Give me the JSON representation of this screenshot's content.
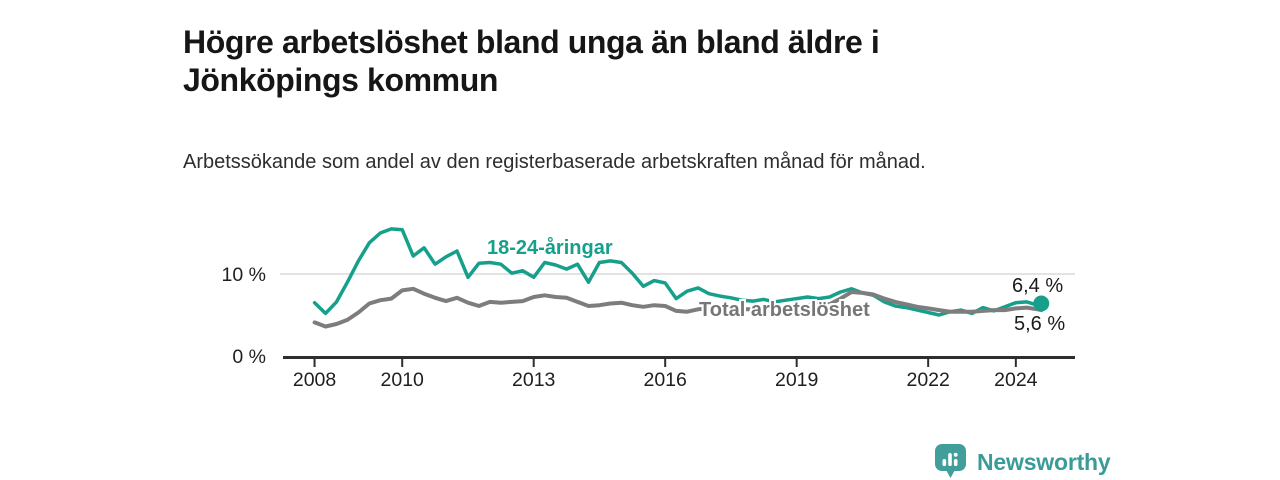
{
  "header": {
    "title": "Högre arbetslöshet bland unga än bland äldre i Jönköpings kommun",
    "subtitle": "Arbetssökande som andel av den registerbaserade arbetskraften månad för månad."
  },
  "chart_data": {
    "type": "line",
    "title": "Högre arbetslöshet bland unga än bland äldre i Jönköpings kommun",
    "subtitle": "Arbetssökande som andel av den registerbaserade arbetskraften månad för månad.",
    "xlabel": "",
    "ylabel": "",
    "grid": "horizontal-10-only",
    "legend_position": "inline-labels-on-lines",
    "ylim": [
      0,
      17
    ],
    "xlim": [
      2007.3,
      2025.3
    ],
    "y_ticks": [
      {
        "value": 0,
        "label": "0 %"
      },
      {
        "value": 10,
        "label": "10 %"
      }
    ],
    "x_ticks": [
      {
        "value": 2008,
        "label": "2008"
      },
      {
        "value": 2010,
        "label": "2010"
      },
      {
        "value": 2013,
        "label": "2013"
      },
      {
        "value": 2016,
        "label": "2016"
      },
      {
        "value": 2019,
        "label": "2019"
      },
      {
        "value": 2022,
        "label": "2022"
      },
      {
        "value": 2024,
        "label": "2024"
      }
    ],
    "x": [
      2008.0,
      2008.25,
      2008.5,
      2008.75,
      2009.0,
      2009.25,
      2009.5,
      2009.75,
      2010.0,
      2010.25,
      2010.5,
      2010.75,
      2011.0,
      2011.25,
      2011.5,
      2011.75,
      2012.0,
      2012.25,
      2012.5,
      2012.75,
      2013.0,
      2013.25,
      2013.5,
      2013.75,
      2014.0,
      2014.25,
      2014.5,
      2014.75,
      2015.0,
      2015.25,
      2015.5,
      2015.75,
      2016.0,
      2016.25,
      2016.5,
      2016.75,
      2017.0,
      2017.25,
      2017.5,
      2017.75,
      2018.0,
      2018.25,
      2018.5,
      2018.75,
      2019.0,
      2019.25,
      2019.5,
      2019.75,
      2020.0,
      2020.25,
      2020.5,
      2020.75,
      2021.0,
      2021.25,
      2021.5,
      2021.75,
      2022.0,
      2022.25,
      2022.5,
      2022.75,
      2023.0,
      2023.25,
      2023.5,
      2023.75,
      2024.0,
      2024.25,
      2024.5,
      2024.58
    ],
    "series": [
      {
        "name": "18-24-åringar",
        "color": "#16a08c",
        "end_label": "6,4 %",
        "end_value": 6.4,
        "end_dot": true,
        "values": [
          6.5,
          5.2,
          6.6,
          9.0,
          11.6,
          13.8,
          15.0,
          15.5,
          15.4,
          12.2,
          13.2,
          11.2,
          12.1,
          12.8,
          9.6,
          11.3,
          11.4,
          11.2,
          10.1,
          10.4,
          9.6,
          11.4,
          11.1,
          10.6,
          11.2,
          9.0,
          11.4,
          11.6,
          11.4,
          10.1,
          8.5,
          9.2,
          8.9,
          7.0,
          7.9,
          8.3,
          7.6,
          7.3,
          7.1,
          6.8,
          6.7,
          6.9,
          6.6,
          6.8,
          7.0,
          7.2,
          7.0,
          7.2,
          7.8,
          8.2,
          7.7,
          7.4,
          6.6,
          6.1,
          5.9,
          5.6,
          5.3,
          5.0,
          5.4,
          5.6,
          5.2,
          5.9,
          5.5,
          6.0,
          6.5,
          6.6,
          6.2,
          6.4
        ]
      },
      {
        "name": "Total arbetslöshet",
        "color": "#7d7d7d",
        "end_label": "5,6 %",
        "end_value": 5.6,
        "end_dot": false,
        "values": [
          4.1,
          3.6,
          3.9,
          4.4,
          5.3,
          6.4,
          6.8,
          7.0,
          8.0,
          8.2,
          7.6,
          7.1,
          6.7,
          7.1,
          6.5,
          6.1,
          6.6,
          6.5,
          6.6,
          6.7,
          7.2,
          7.4,
          7.2,
          7.1,
          6.6,
          6.1,
          6.2,
          6.4,
          6.5,
          6.2,
          6.0,
          6.2,
          6.1,
          5.5,
          5.4,
          5.7,
          5.8,
          5.9,
          5.8,
          5.7,
          5.7,
          5.8,
          5.8,
          5.9,
          6.0,
          6.2,
          6.3,
          6.3,
          7.0,
          7.8,
          7.7,
          7.5,
          7.0,
          6.6,
          6.3,
          6.0,
          5.8,
          5.6,
          5.4,
          5.4,
          5.4,
          5.5,
          5.6,
          5.6,
          5.8,
          5.9,
          5.7,
          5.6
        ]
      }
    ]
  },
  "footer": {
    "brand": "Newsworthy"
  },
  "colors": {
    "accent_teal": "#16a08c",
    "series_gray": "#7d7d7d",
    "logo_teal": "#429e9b",
    "axis": "#2e2e2e",
    "gridline": "#dadada"
  }
}
